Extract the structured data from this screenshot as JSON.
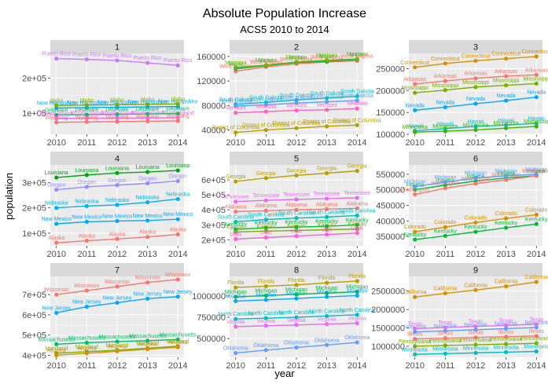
{
  "chart_data": {
    "type": "line",
    "title": "Absolute Population Increase",
    "subtitle": "ACS5 2010 to 2014",
    "xlabel": "year",
    "ylabel": "population",
    "x": [
      2010,
      2011,
      2012,
      2013,
      2014
    ],
    "panels": [
      {
        "name": "1",
        "ylim": [
          40000,
          270000
        ],
        "yticks": [
          100000,
          200000
        ],
        "yticklabels": [
          "1e+05",
          "2e+05"
        ],
        "series": [
          {
            "name": "Puerto Rico",
            "color": "#c77cff",
            "values": [
              255000,
              253000,
              250000,
              243000,
              236000
            ]
          },
          {
            "name": "New Hampshire",
            "color": "#00a9ff",
            "values": [
              115000,
              116000,
              117000,
              118000,
              119000
            ]
          },
          {
            "name": "Idaho",
            "color": "#7cae00",
            "values": [
              122000,
              123000,
              124000,
              125000,
              126000
            ]
          },
          {
            "name": "Delaware",
            "color": "#00be67",
            "values": [
              95000,
              96000,
              97000,
              98000,
              99000
            ]
          },
          {
            "name": "Rhode Island",
            "color": "#e76bf3",
            "values": [
              85000,
              85500,
              86000,
              86500,
              87000
            ]
          },
          {
            "name": "Wyoming",
            "color": "#f8766d",
            "values": [
              74000,
              75000,
              76000,
              77000,
              78000
            ]
          }
        ]
      },
      {
        "name": "2",
        "ylim": [
          33000,
          165000
        ],
        "yticks": [
          40000,
          80000,
          120000,
          160000
        ],
        "yticklabels": [
          "40000",
          "80000",
          "120000",
          "160000"
        ],
        "series": [
          {
            "name": "West Virginia",
            "color": "#f8766d",
            "values": [
              136000,
              143000,
              148000,
              151000,
              153000
            ]
          },
          {
            "name": "Maine",
            "color": "#00ba38",
            "values": [
              140000,
              145000,
              150000,
              152000,
              155000
            ]
          },
          {
            "name": "Montana",
            "color": "#7cae00",
            "values": [
              142000,
              146000,
              151000,
              154000,
              156000
            ]
          },
          {
            "name": "South Dakota",
            "color": "#00bfc4",
            "values": [
              82000,
              85000,
              89000,
              92000,
              95000
            ]
          },
          {
            "name": "North Dakota",
            "color": "#619cff",
            "values": [
              79000,
              81000,
              84000,
              86000,
              88000
            ]
          },
          {
            "name": "Vermont",
            "color": "#ff61c3",
            "values": [
              68000,
              70000,
              72000,
              73000,
              75000
            ]
          },
          {
            "name": "District of Columbia",
            "color": "#b79f00",
            "values": [
              36000,
              40000,
              43000,
              46000,
              48000
            ]
          }
        ]
      },
      {
        "name": "3",
        "ylim": [
          100000,
          285000
        ],
        "yticks": [
          100000,
          150000,
          200000,
          250000
        ],
        "yticklabels": [
          "100000",
          "150000",
          "200000",
          "250000"
        ],
        "series": [
          {
            "name": "Connecticut",
            "color": "#d89000",
            "values": [
              253000,
              262000,
              268000,
              273000,
              278000
            ]
          },
          {
            "name": "Arkansas",
            "color": "#f8766d",
            "values": [
              215000,
              222000,
              228000,
              233000,
              236000
            ]
          },
          {
            "name": "Mississippi",
            "color": "#7cae00",
            "values": [
              195000,
              201000,
              208000,
              212000,
              216000
            ]
          },
          {
            "name": "Nevada",
            "color": "#00a9ff",
            "values": [
              155000,
              162000,
              170000,
              177000,
              185000
            ]
          },
          {
            "name": "Hawaii",
            "color": "#00bfc4",
            "values": [
              108000,
              113000,
              118000,
              121000,
              125000
            ]
          },
          {
            "name": "Minnesota",
            "color": "#39b600",
            "values": [
              105000,
              107000,
              110000,
              114000,
              118000
            ]
          }
        ]
      },
      {
        "name": "4",
        "ylim": [
          50000,
          370000
        ],
        "yticks": [
          100000,
          200000,
          300000
        ],
        "yticklabels": [
          "1e+05",
          "2e+05",
          "3e+05"
        ],
        "series": [
          {
            "name": "Louisiana",
            "color": "#00a514",
            "values": [
              320000,
              330000,
              338000,
              342000,
              348000
            ]
          },
          {
            "name": "Oregon",
            "color": "#9590ff",
            "values": [
              272000,
              283000,
              290000,
              297000,
              306000
            ]
          },
          {
            "name": "Nebraska",
            "color": "#00b0f6",
            "values": [
              200000,
              207000,
              212000,
              222000,
              235000
            ]
          },
          {
            "name": "New Mexico",
            "color": "#00a9ff",
            "values": [
              137000,
              145000,
              148000,
              150000,
              155000
            ]
          },
          {
            "name": "Alaska",
            "color": "#f8766d",
            "values": [
              62000,
              70000,
              77000,
              85000,
              95000
            ]
          }
        ]
      },
      {
        "name": "5",
        "ylim": [
          160000,
          700000
        ],
        "yticks": [
          200000,
          300000,
          400000,
          500000,
          600000
        ],
        "yticklabels": [
          "2e+05",
          "3e+05",
          "4e+05",
          "5e+05",
          "6e+05"
        ],
        "series": [
          {
            "name": "Georgia",
            "color": "#b79f00",
            "values": [
              590000,
              612000,
              630000,
              645000,
              660000
            ]
          },
          {
            "name": "Tennessee",
            "color": "#e76bf3",
            "values": [
              455000,
              463000,
              470000,
              475000,
              480000
            ]
          },
          {
            "name": "Alabama",
            "color": "#f8766d",
            "values": [
              388000,
              395000,
              400000,
              405000,
              410000
            ]
          },
          {
            "name": "South Carolina",
            "color": "#00bfc4",
            "values": [
              320000,
              335000,
              345000,
              352000,
              362000
            ]
          },
          {
            "name": "Kentucky",
            "color": "#00ba38",
            "values": [
              270000,
              280000,
              285000,
              290000,
              300000
            ]
          },
          {
            "name": "Kansas",
            "color": "#7cae00",
            "values": [
              252000,
              258000,
              262000,
              267000,
              272000
            ]
          },
          {
            "name": "Utah",
            "color": "#fd61d1",
            "values": [
              205000,
              215000,
              225000,
              235000,
              245000
            ]
          }
        ]
      },
      {
        "name": "6",
        "ylim": [
          320000,
          580000
        ],
        "yticks": [
          350000,
          400000,
          450000,
          500000,
          550000
        ],
        "yticklabels": [
          "350000",
          "400000",
          "450000",
          "500000",
          "550000"
        ],
        "series": [
          {
            "name": "Indiana",
            "color": "#00ba38",
            "values": [
              500000,
              515000,
              528000,
              538000,
              545000
            ]
          },
          {
            "name": "Washington",
            "color": "#f8766d",
            "values": [
              485000,
              505000,
              520000,
              532000,
              545000
            ]
          },
          {
            "name": "Michigan",
            "color": "#619cff",
            "values": [
              510000,
              525000,
              538000,
              545000,
              550000
            ]
          },
          {
            "name": "Colorado",
            "color": "#d89000",
            "values": [
              365000,
              380000,
              395000,
              408000,
              420000
            ]
          },
          {
            "name": "Kentucky",
            "color": "#00ba38",
            "values": [
              340000,
              352000,
              365000,
              378000,
              390000
            ]
          }
        ]
      },
      {
        "name": "7",
        "ylim": [
          390000,
          790000
        ],
        "yticks": [
          400000,
          500000,
          600000,
          700000
        ],
        "yticklabels": [
          "4e+05",
          "5e+05",
          "6e+05",
          "7e+05"
        ],
        "series": [
          {
            "name": "Wisconsin",
            "color": "#f8766d",
            "values": [
              700000,
              720000,
              740000,
              760000,
              775000
            ]
          },
          {
            "name": "New Jersey",
            "color": "#00a9ff",
            "values": [
              610000,
              640000,
              660000,
              680000,
              690000
            ]
          },
          {
            "name": "Massachusetts",
            "color": "#00be67",
            "values": [
              455000,
              462000,
              468000,
              472000,
              478000
            ]
          },
          {
            "name": "Maryland",
            "color": "#7cae00",
            "values": [
              410000,
              418000,
              425000,
              435000,
              445000
            ]
          },
          {
            "name": "Arizona",
            "color": "#d89000",
            "values": [
              400000,
              410000,
              420000,
              430000,
              440000
            ]
          }
        ]
      },
      {
        "name": "8",
        "ylim": [
          280000,
          1230000
        ],
        "yticks": [
          500000,
          750000,
          1000000
        ],
        "yticklabels": [
          "500000",
          "750000",
          "1000000"
        ],
        "series": [
          {
            "name": "Florida",
            "color": "#b79f00",
            "values": [
              1100000,
              1115000,
              1130000,
              1155000,
              1175000
            ]
          },
          {
            "name": "Michigan",
            "color": "#00ba38",
            "values": [
              990000,
              1005000,
              1020000,
              1035000,
              1050000
            ]
          },
          {
            "name": "Missouri",
            "color": "#00a9ff",
            "values": [
              940000,
              955000,
              970000,
              990000,
              1005000
            ]
          },
          {
            "name": "North Carolina",
            "color": "#00bfc4",
            "values": [
              730000,
              740000,
              750000,
              765000,
              780000
            ]
          },
          {
            "name": "Virginia",
            "color": "#e76bf3",
            "values": [
              640000,
              650000,
              660000,
              670000,
              680000
            ]
          },
          {
            "name": "Oklahoma",
            "color": "#619cff",
            "values": [
              330000,
              365000,
              395000,
              425000,
              455000
            ]
          }
        ]
      },
      {
        "name": "9",
        "ylim": [
          700000,
          2900000
        ],
        "yticks": [
          1000000,
          1500000,
          2000000,
          2500000
        ],
        "yticklabels": [
          "1000000",
          "1500000",
          "2000000",
          "2500000"
        ],
        "series": [
          {
            "name": "California",
            "color": "#d89000",
            "values": [
              2340000,
              2440000,
              2530000,
              2630000,
              2750000
            ]
          },
          {
            "name": "Texas",
            "color": "#e76bf3",
            "values": [
              1480000,
              1510000,
              1540000,
              1570000,
              1600000
            ]
          },
          {
            "name": "New York",
            "color": "#619cff",
            "values": [
              1390000,
              1420000,
              1450000,
              1480000,
              1510000
            ]
          },
          {
            "name": "Illinois",
            "color": "#f8766d",
            "values": [
              1200000,
              1220000,
              1240000,
              1260000,
              1280000
            ]
          },
          {
            "name": "Pennsylvania",
            "color": "#7cae00",
            "values": [
              1000000,
              1020000,
              1040000,
              1060000,
              1080000
            ]
          },
          {
            "name": "Minnesota",
            "color": "#00bfc4",
            "values": [
              780000,
              800000,
              820000,
              840000,
              860000
            ]
          }
        ]
      }
    ]
  }
}
